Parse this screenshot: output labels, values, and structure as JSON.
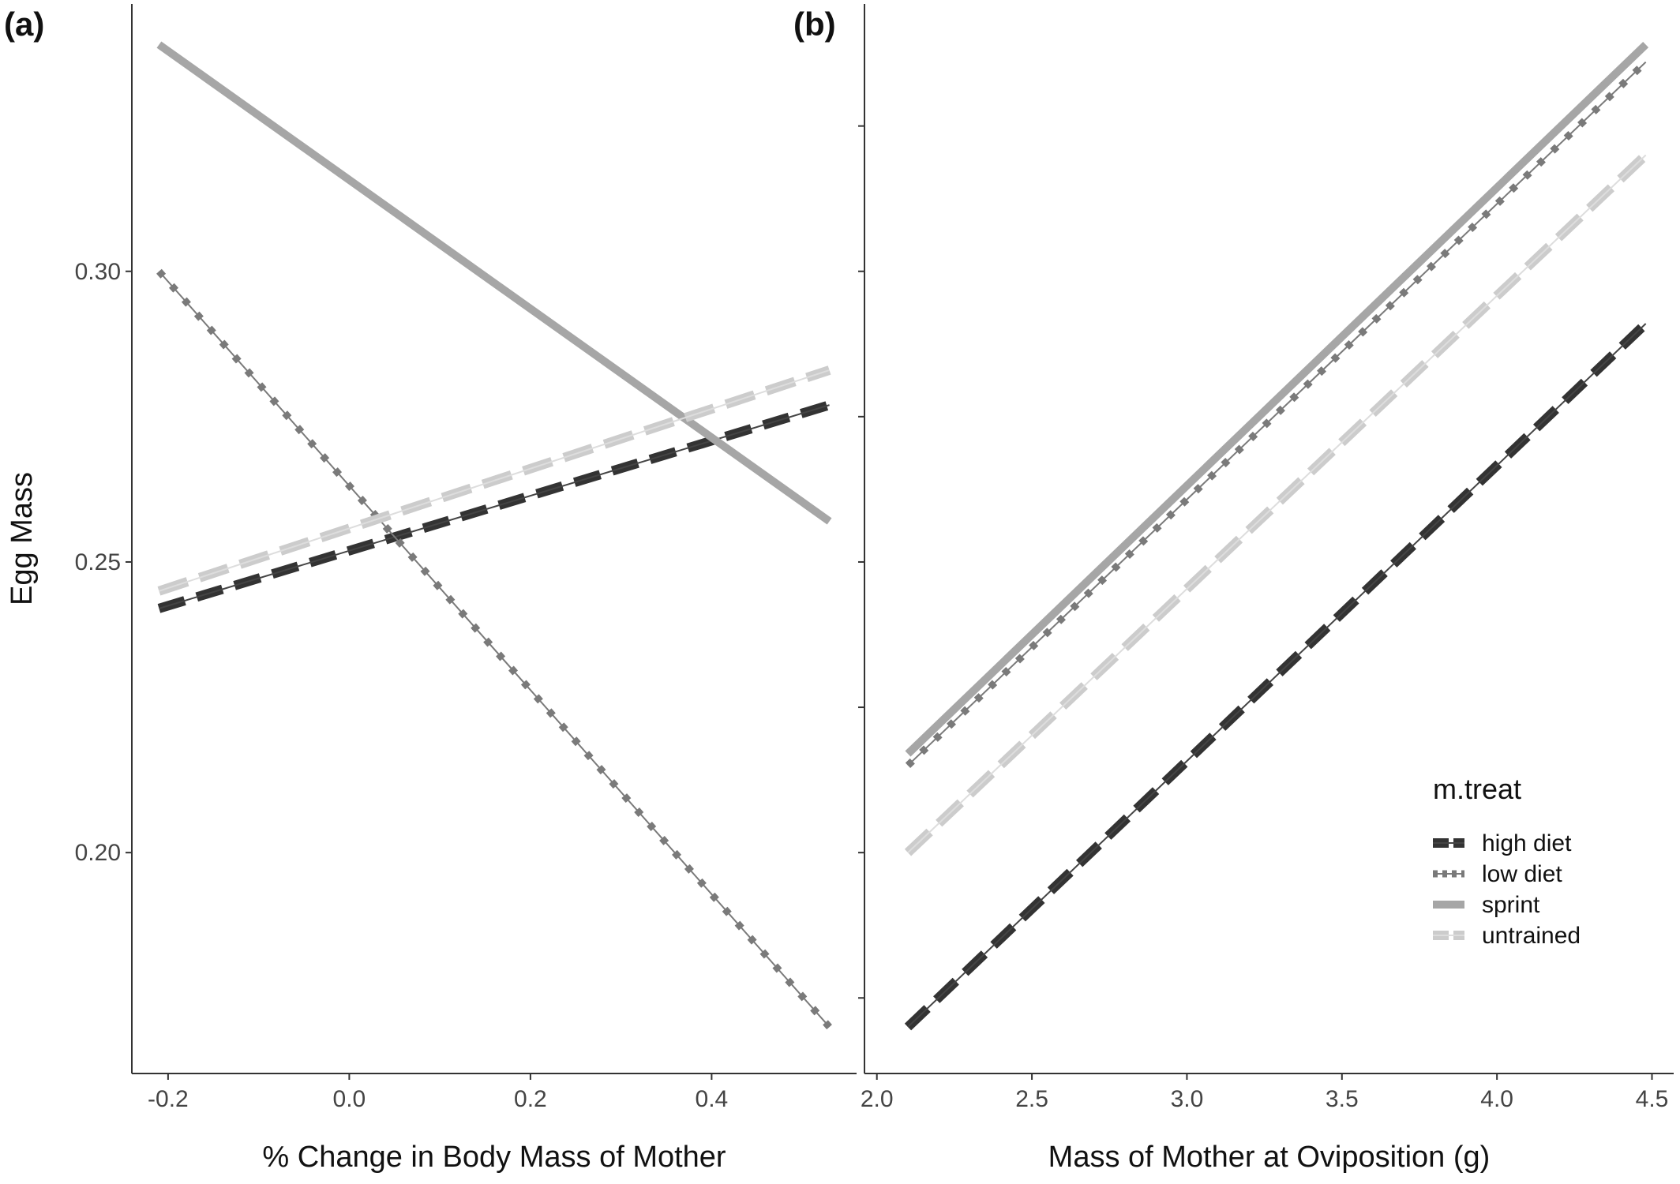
{
  "styles": {
    "high diet": {
      "color": "#333333",
      "width": 12,
      "dash": "34 16",
      "thin": "#444444"
    },
    "low diet": {
      "color": "#7a7a7a",
      "width": 9,
      "dash": "8 16",
      "thin": "#7a7a7a"
    },
    "sprint": {
      "color": "#a6a6a6",
      "width": 10,
      "dash": "",
      "thin": ""
    },
    "untrained": {
      "color": "#cccccc",
      "width": 12,
      "dash": "38 16",
      "thin": "#dddddd"
    }
  },
  "chart_data": [
    {
      "type": "line",
      "panel_label": "(a)",
      "xlabel": "% Change in Body Mass of Mother",
      "ylabel": "Egg Mass",
      "xlim": [
        -0.24,
        0.56
      ],
      "ylim": [
        0.162,
        0.346
      ],
      "xticks": [
        -0.2,
        0.0,
        0.2,
        0.4
      ],
      "xtick_labels": [
        "-0.2",
        "0.0",
        "0.2",
        "0.4"
      ],
      "yticks": [
        0.2,
        0.25,
        0.3
      ],
      "ytick_labels": [
        "0.20",
        "0.25",
        "0.30"
      ],
      "series": [
        {
          "name": "high diet",
          "x": [
            -0.21,
            0.53
          ],
          "y": [
            0.242,
            0.277
          ]
        },
        {
          "name": "low diet",
          "x": [
            -0.21,
            0.53
          ],
          "y": [
            0.3,
            0.17
          ]
        },
        {
          "name": "sprint",
          "x": [
            -0.21,
            0.53
          ],
          "y": [
            0.339,
            0.257
          ]
        },
        {
          "name": "untrained",
          "x": [
            -0.21,
            0.53
          ],
          "y": [
            0.245,
            0.283
          ]
        }
      ]
    },
    {
      "type": "line",
      "panel_label": "(b)",
      "xlabel": "Mass of Mother at Oviposition (g)",
      "ylabel": "",
      "xlim": [
        1.96,
        4.57
      ],
      "ylim": [
        0.162,
        0.346
      ],
      "xticks": [
        2.0,
        2.5,
        3.0,
        3.5,
        4.0,
        4.5
      ],
      "xtick_labels": [
        "2.0",
        "2.5",
        "3.0",
        "3.5",
        "4.0",
        "4.5"
      ],
      "yticks": [
        0.175,
        0.2,
        0.225,
        0.25,
        0.275,
        0.3,
        0.325
      ],
      "ytick_labels": [
        "",
        "",
        "",
        "",
        "",
        "",
        ""
      ],
      "series": [
        {
          "name": "high diet",
          "x": [
            2.1,
            4.48
          ],
          "y": [
            0.17,
            0.291
          ]
        },
        {
          "name": "low diet",
          "x": [
            2.1,
            4.48
          ],
          "y": [
            0.215,
            0.336
          ]
        },
        {
          "name": "sprint",
          "x": [
            2.1,
            4.48
          ],
          "y": [
            0.217,
            0.339
          ]
        },
        {
          "name": "untrained",
          "x": [
            2.1,
            4.48
          ],
          "y": [
            0.2,
            0.32
          ]
        }
      ],
      "legend": {
        "title": "m.treat",
        "position": "bottom-right",
        "entries": [
          "high diet",
          "low diet",
          "sprint",
          "untrained"
        ]
      }
    }
  ]
}
